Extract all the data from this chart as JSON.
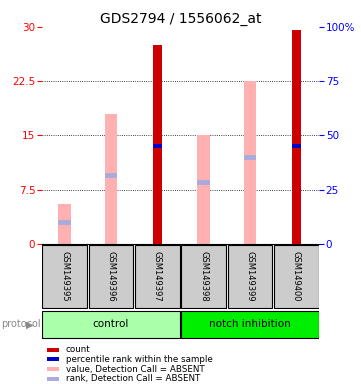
{
  "title": "GDS2794 / 1556062_at",
  "samples": [
    "GSM149395",
    "GSM149396",
    "GSM149397",
    "GSM149398",
    "GSM149399",
    "GSM149400"
  ],
  "red_bars": [
    0,
    0,
    27.5,
    0,
    0,
    29.5
  ],
  "pink_bars": [
    5.5,
    18.0,
    0,
    15.0,
    22.5,
    0
  ],
  "blue_marks": [
    0,
    0,
    13.5,
    0,
    0,
    13.5
  ],
  "lightblue_marks": [
    3.0,
    9.5,
    0,
    8.5,
    12.0,
    0
  ],
  "ylim": [
    0,
    30
  ],
  "yticks_left": [
    0,
    7.5,
    15,
    22.5,
    30
  ],
  "yticks_right": [
    0,
    25,
    50,
    75,
    100
  ],
  "red_color": "#CC0000",
  "pink_color": "#FFB0B0",
  "blue_color": "#0000CC",
  "lightblue_color": "#AAAADD",
  "title_fontsize": 10,
  "tick_fontsize": 7.5,
  "control_color": "#AAFFAA",
  "notch_color": "#00EE00",
  "gray_color": "#CCCCCC",
  "legend_items": [
    {
      "color": "#CC0000",
      "label": "count"
    },
    {
      "color": "#0000CC",
      "label": "percentile rank within the sample"
    },
    {
      "color": "#FFB0B0",
      "label": "value, Detection Call = ABSENT"
    },
    {
      "color": "#AAAADD",
      "label": "rank, Detection Call = ABSENT"
    }
  ]
}
